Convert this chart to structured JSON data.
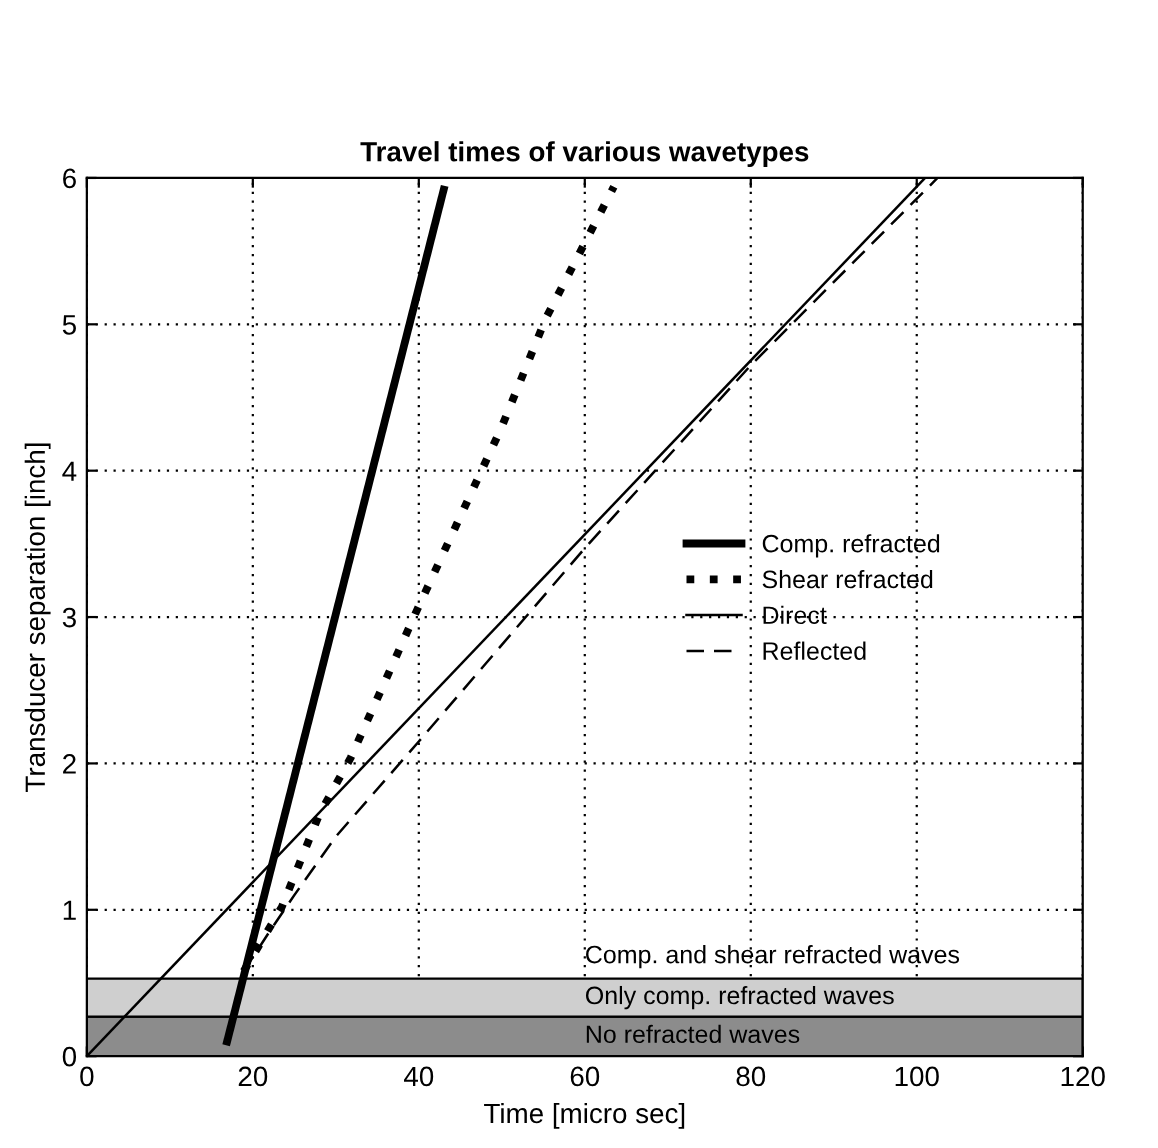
{
  "chart_data": {
    "type": "line",
    "title": "Travel times of various wavetypes",
    "xlabel": "Time [micro sec]",
    "ylabel": "Transducer separation [inch]",
    "xlim": [
      0,
      120
    ],
    "ylim": [
      0,
      6
    ],
    "xticks": [
      0,
      20,
      40,
      60,
      80,
      100,
      120
    ],
    "yticks": [
      0,
      1,
      2,
      3,
      4,
      5,
      6
    ],
    "grid": true,
    "legend": "right",
    "series": [
      {
        "name": "Comp. refracted",
        "color": "#000000",
        "line_style": "solid",
        "x": [
          16.9,
          43
        ],
        "values": [
          0.1,
          5.92
        ]
      },
      {
        "name": "Shear refracted",
        "color": "#000000",
        "line_style": "dotted",
        "x": [
          18.9,
          23.5,
          28,
          31.8,
          39.8,
          50,
          55.3,
          63.5
        ],
        "values": [
          0.58,
          1.02,
          1.65,
          2.04,
          3.05,
          4.3,
          5.04,
          5.94
        ]
      },
      {
        "name": "Direct",
        "color": "#000000",
        "line_style": "solid",
        "x": [
          0,
          101
        ],
        "values": [
          0,
          6
        ]
      },
      {
        "name": "Reflected",
        "color": "#000000",
        "line_style": "dashed",
        "x": [
          18.9,
          22,
          25,
          30,
          40,
          60,
          80,
          102.5
        ],
        "values": [
          0.58,
          0.85,
          1.1,
          1.5,
          2.15,
          3.47,
          4.72,
          6
        ]
      }
    ],
    "bands": [
      {
        "axis": "y",
        "from": 0,
        "to": 0.27,
        "label": "No refracted waves",
        "color": "#8c8c8c"
      },
      {
        "axis": "y",
        "from": 0.27,
        "to": 0.53,
        "label": "Only comp. refracted waves",
        "color": "#cfcfcf"
      }
    ],
    "annotations": [
      "Comp. and shear refracted waves"
    ]
  }
}
